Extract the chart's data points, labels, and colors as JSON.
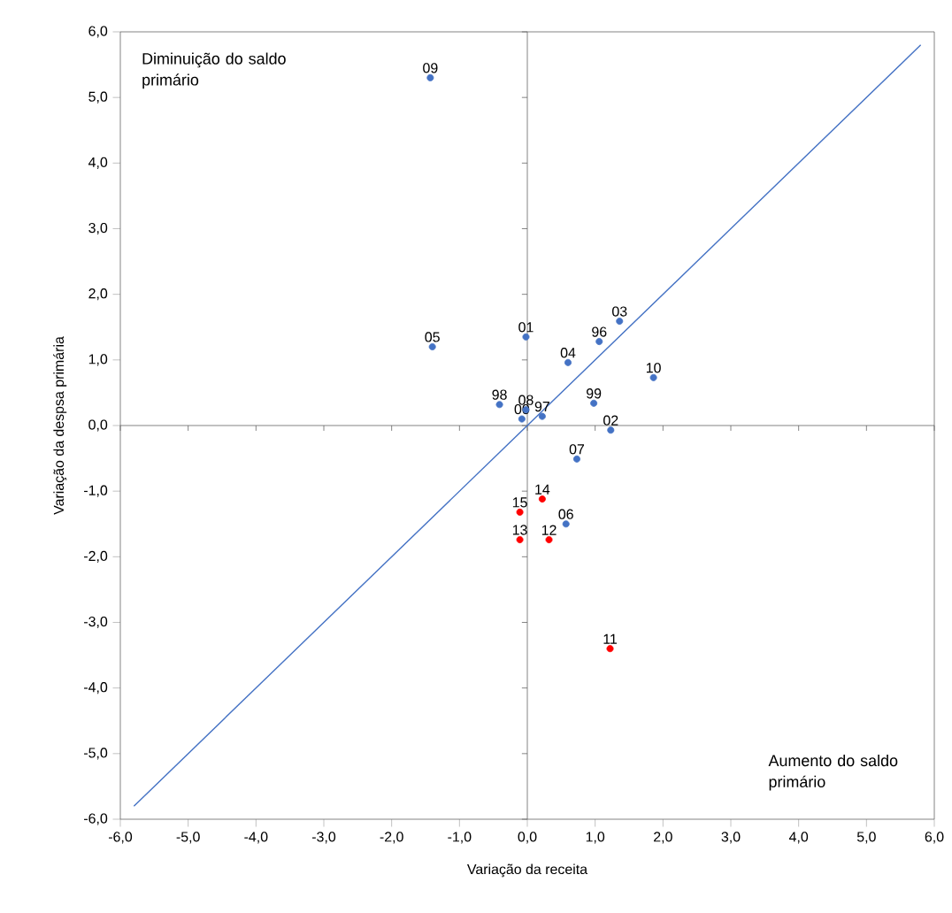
{
  "chart_data": {
    "type": "scatter",
    "xlabel": "Variação da receita",
    "ylabel": "Variação da despsa primária",
    "xlim": [
      -6,
      6
    ],
    "ylim": [
      -6,
      6
    ],
    "xticks": [
      {
        "value": -6,
        "label": "-6,0"
      },
      {
        "value": -5,
        "label": "-5,0"
      },
      {
        "value": -4,
        "label": "-4,0"
      },
      {
        "value": -3,
        "label": "-3,0"
      },
      {
        "value": -2,
        "label": "-2,0"
      },
      {
        "value": -1,
        "label": "-1,0"
      },
      {
        "value": 0,
        "label": "0,0"
      },
      {
        "value": 1,
        "label": "1,0"
      },
      {
        "value": 2,
        "label": "2,0"
      },
      {
        "value": 3,
        "label": "3,0"
      },
      {
        "value": 4,
        "label": "4,0"
      },
      {
        "value": 5,
        "label": "5,0"
      },
      {
        "value": 6,
        "label": "6,0"
      }
    ],
    "yticks": [
      {
        "value": -6,
        "label": "-6,0"
      },
      {
        "value": -5,
        "label": "-5,0"
      },
      {
        "value": -4,
        "label": "-4,0"
      },
      {
        "value": -3,
        "label": "-3,0"
      },
      {
        "value": -2,
        "label": "-2,0"
      },
      {
        "value": -1,
        "label": "-1,0"
      },
      {
        "value": 0,
        "label": "0,0"
      },
      {
        "value": 1,
        "label": "1,0"
      },
      {
        "value": 2,
        "label": "2,0"
      },
      {
        "value": 3,
        "label": "3,0"
      },
      {
        "value": 4,
        "label": "4,0"
      },
      {
        "value": 5,
        "label": "5,0"
      },
      {
        "value": 6,
        "label": "6,0"
      }
    ],
    "marker": "circle",
    "series": [
      {
        "color": "#4472c4",
        "x": [
          -1.43,
          -1.4,
          -0.02,
          0.6,
          1.06,
          1.36,
          1.86,
          0.98,
          -0.41,
          -0.02,
          -0.08,
          0.22,
          1.23,
          0.73,
          0.57
        ],
        "values": [
          5.3,
          1.2,
          1.35,
          0.96,
          1.28,
          1.59,
          0.73,
          0.34,
          0.32,
          0.24,
          0.1,
          0.14,
          -0.07,
          -0.51,
          -1.5
        ]
      },
      {
        "color": "#ff0000",
        "x": [
          0.22,
          -0.11,
          -0.11,
          0.32,
          1.22
        ],
        "values": [
          -1.12,
          -1.32,
          -1.74,
          -1.74,
          -3.4
        ]
      },
      {
        "type": "line",
        "marker": "none",
        "color": "#4472c4",
        "x": [
          -5.8,
          5.8
        ],
        "values": [
          -5.8,
          5.8
        ]
      }
    ],
    "annotations": [
      "Diminuição do saldo primário",
      "Aumento do saldo primário",
      {
        "text": "09",
        "x": -1.43,
        "y": 5.3
      },
      {
        "text": "05",
        "x": -1.4,
        "y": 1.2
      },
      {
        "text": "01",
        "x": -0.02,
        "y": 1.35
      },
      {
        "text": "04",
        "x": 0.6,
        "y": 0.96
      },
      {
        "text": "96",
        "x": 1.06,
        "y": 1.28
      },
      {
        "text": "03",
        "x": 1.36,
        "y": 1.59
      },
      {
        "text": "10",
        "x": 1.86,
        "y": 0.73
      },
      {
        "text": "99",
        "x": 0.98,
        "y": 0.34
      },
      {
        "text": "98",
        "x": -0.41,
        "y": 0.32
      },
      {
        "text": "08",
        "x": -0.02,
        "y": 0.24
      },
      {
        "text": "00",
        "x": -0.08,
        "y": 0.1
      },
      {
        "text": "97",
        "x": 0.22,
        "y": 0.14
      },
      {
        "text": "02",
        "x": 1.23,
        "y": -0.07
      },
      {
        "text": "07",
        "x": 0.73,
        "y": -0.51
      },
      {
        "text": "06",
        "x": 0.57,
        "y": -1.5
      },
      {
        "text": "14",
        "x": 0.22,
        "y": -1.12
      },
      {
        "text": "15",
        "x": -0.11,
        "y": -1.32
      },
      {
        "text": "13",
        "x": -0.11,
        "y": -1.74
      },
      {
        "text": "12",
        "x": 0.32,
        "y": -1.74
      },
      {
        "text": "11",
        "x": 1.22,
        "y": -3.4
      }
    ]
  }
}
